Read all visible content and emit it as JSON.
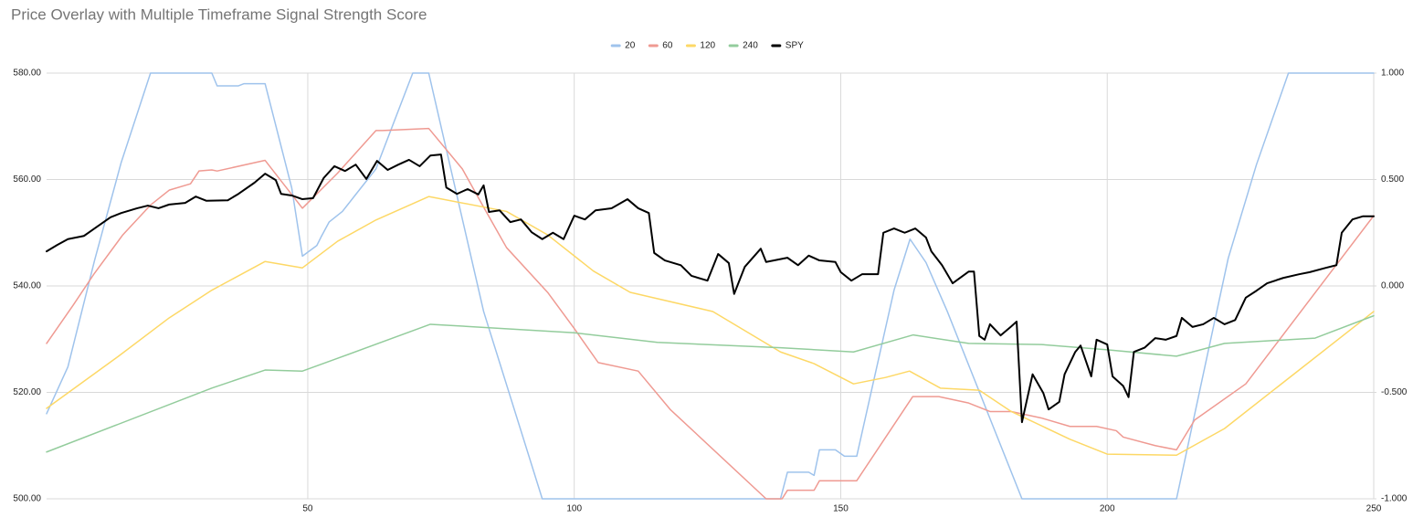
{
  "chart_data": {
    "type": "line",
    "title": "Price Overlay with Multiple Timeframe Signal Strength Score",
    "xlim": [
      1,
      250
    ],
    "xticks": [
      50,
      100,
      150,
      200,
      250
    ],
    "ylim": [
      500,
      580
    ],
    "yticks": [
      {
        "value": 500,
        "label": "500.00"
      },
      {
        "value": 520,
        "label": "520.00"
      },
      {
        "value": 540,
        "label": "540.00"
      },
      {
        "value": 560,
        "label": "560.00"
      },
      {
        "value": 580,
        "label": "580.00"
      }
    ],
    "y2lim": [
      -1,
      1
    ],
    "y2ticks": [
      {
        "value": -1,
        "label": "-1.000"
      },
      {
        "value": -0.5,
        "label": "-0.500"
      },
      {
        "value": 0,
        "label": "0.000"
      },
      {
        "value": 0.5,
        "label": "0.500"
      },
      {
        "value": 1,
        "label": "1.000"
      }
    ],
    "grid": true,
    "legend": "top",
    "series": [
      {
        "name": "20",
        "color": "#9fc3ec",
        "axis": "y2",
        "x": [
          1,
          5,
          10,
          15,
          20.5,
          32,
          33,
          37,
          38,
          42,
          47,
          49,
          51.7,
          52.5,
          54,
          56.5,
          58.7,
          62.8,
          69.7,
          72.7,
          83,
          94,
          138.7,
          140,
          144,
          145,
          146,
          149,
          150.7,
          153,
          160,
          163,
          166,
          170,
          184,
          213,
          218.4,
          222.7,
          228,
          234,
          250
        ],
        "values": [
          -0.6,
          -0.38,
          0.12,
          0.58,
          1,
          1,
          0.94,
          0.94,
          0.95,
          0.95,
          0.46,
          0.14,
          0.19,
          0.23,
          0.3,
          0.35,
          0.42,
          0.55,
          1,
          1,
          -0.12,
          -1,
          -1,
          -0.875,
          -0.875,
          -0.89,
          -0.77,
          -0.77,
          -0.8,
          -0.8,
          -0.02,
          0.22,
          0.11,
          -0.12,
          -1,
          -1,
          -0.37,
          0.13,
          0.57,
          1,
          1
        ]
      },
      {
        "name": "60",
        "color": "#ef9a92",
        "axis": "y2",
        "x": [
          1,
          6,
          10,
          15.3,
          20.5,
          24,
          28,
          29.6,
          32,
          33,
          42,
          49,
          55.6,
          62.8,
          64,
          72.7,
          79,
          83,
          87.3,
          95,
          100,
          104.5,
          112,
          118,
          136,
          139,
          140,
          145,
          146,
          153,
          163.5,
          168.4,
          174,
          178,
          182,
          187.6,
          193,
          198,
          201.7,
          203,
          209,
          213,
          216.4,
          226,
          250
        ],
        "values": [
          -0.27,
          -0.09,
          0.06,
          0.24,
          0.38,
          0.45,
          0.48,
          0.54,
          0.545,
          0.54,
          0.59,
          0.365,
          0.53,
          0.73,
          0.73,
          0.74,
          0.55,
          0.37,
          0.18,
          -0.03,
          -0.2,
          -0.36,
          -0.4,
          -0.58,
          -1,
          -1,
          -0.96,
          -0.96,
          -0.915,
          -0.915,
          -0.52,
          -0.52,
          -0.55,
          -0.59,
          -0.59,
          -0.62,
          -0.66,
          -0.66,
          -0.68,
          -0.71,
          -0.75,
          -0.77,
          -0.63,
          -0.46,
          0.33
        ]
      },
      {
        "name": "120",
        "color": "#fdd866",
        "axis": "y2",
        "x": [
          1,
          14.5,
          24,
          32,
          42,
          49,
          55.6,
          62.8,
          72.7,
          87.3,
          95,
          103.6,
          110.5,
          126,
          138.7,
          145,
          152.4,
          158.4,
          162.9,
          168.7,
          176,
          182,
          193,
          200,
          213,
          222,
          250
        ],
        "values": [
          -0.575,
          -0.33,
          -0.15,
          -0.02,
          0.115,
          0.085,
          0.21,
          0.31,
          0.42,
          0.35,
          0.24,
          0.07,
          -0.03,
          -0.12,
          -0.31,
          -0.365,
          -0.46,
          -0.43,
          -0.4,
          -0.48,
          -0.49,
          -0.59,
          -0.72,
          -0.79,
          -0.795,
          -0.67,
          -0.12
        ]
      },
      {
        "name": "240",
        "color": "#93cc9c",
        "axis": "y2",
        "x": [
          1,
          32,
          42,
          49,
          55.6,
          73,
          100,
          115.6,
          138.7,
          152.4,
          163.6,
          174,
          187.6,
          200,
          213,
          216,
          222,
          239,
          250
        ],
        "values": [
          -0.78,
          -0.48,
          -0.395,
          -0.4,
          -0.34,
          -0.18,
          -0.22,
          -0.265,
          -0.29,
          -0.31,
          -0.23,
          -0.27,
          -0.275,
          -0.3,
          -0.33,
          -0.31,
          -0.27,
          -0.245,
          -0.14
        ]
      },
      {
        "name": "SPY",
        "color": "#000000",
        "x": [
          1,
          3,
          5,
          8,
          10,
          13,
          15,
          18,
          20,
          22,
          24,
          27,
          29,
          31,
          35,
          37,
          40,
          42,
          44,
          45,
          47,
          49,
          51,
          53,
          55,
          57,
          59,
          61,
          63,
          65,
          67,
          69,
          71,
          73,
          75,
          76,
          78,
          80,
          82,
          83,
          84,
          86,
          88,
          90,
          92,
          94,
          96,
          98,
          100,
          102,
          104,
          107,
          110,
          112,
          114,
          115,
          117,
          120,
          122,
          125,
          127,
          129,
          130,
          132,
          135,
          136,
          140,
          142,
          144,
          146,
          149,
          150,
          152,
          154,
          157,
          158,
          160,
          162,
          164,
          166,
          167,
          169,
          171,
          174,
          175,
          176,
          177,
          178,
          180,
          182,
          183,
          184,
          186,
          188,
          189,
          191,
          192,
          194,
          195,
          197,
          198,
          200,
          201,
          203,
          204,
          205,
          207,
          209,
          211,
          213,
          214,
          216,
          218,
          220,
          222,
          224,
          226,
          228,
          230,
          233,
          236,
          238,
          241,
          243,
          244,
          246,
          248,
          250
        ],
        "values": [
          546.5,
          547.7,
          548.8,
          549.4,
          550.8,
          552.9,
          553.7,
          554.6,
          555.1,
          554.6,
          555.3,
          555.6,
          556.8,
          556,
          556.1,
          557.3,
          559.4,
          561.1,
          559.9,
          557.3,
          557,
          556.3,
          556.5,
          560.3,
          562.5,
          561.6,
          562.8,
          560.1,
          563.5,
          561.8,
          562.8,
          563.7,
          562.5,
          564.5,
          564.7,
          558.5,
          557.3,
          558.2,
          557.2,
          558.9,
          553.9,
          554.2,
          552,
          552.5,
          550.1,
          548.8,
          550,
          548.8,
          553.2,
          552.5,
          554.2,
          554.6,
          556.3,
          554.6,
          553.7,
          546.2,
          544.8,
          543.9,
          541.9,
          541,
          546,
          544.3,
          538.5,
          543.6,
          547,
          544.5,
          545.3,
          543.9,
          545.7,
          544.8,
          544.5,
          542.6,
          541,
          542.2,
          542.2,
          550,
          550.8,
          550,
          550.8,
          549.1,
          546.5,
          543.9,
          540.5,
          542.7,
          542.7,
          530.6,
          529.9,
          532.8,
          530.7,
          532.4,
          533.3,
          514.4,
          523.4,
          519.9,
          516.8,
          518.2,
          523.4,
          527.6,
          528.8,
          523,
          529.9,
          529,
          523,
          521.2,
          519.1,
          527.6,
          528.4,
          530.2,
          529.9,
          530.6,
          534,
          532.3,
          532.8,
          534,
          532.8,
          533.6,
          537.8,
          539.1,
          540.5,
          541.5,
          542.2,
          542.6,
          543.4,
          543.9,
          550,
          552.5,
          553.1,
          553.1
        ]
      }
    ]
  }
}
